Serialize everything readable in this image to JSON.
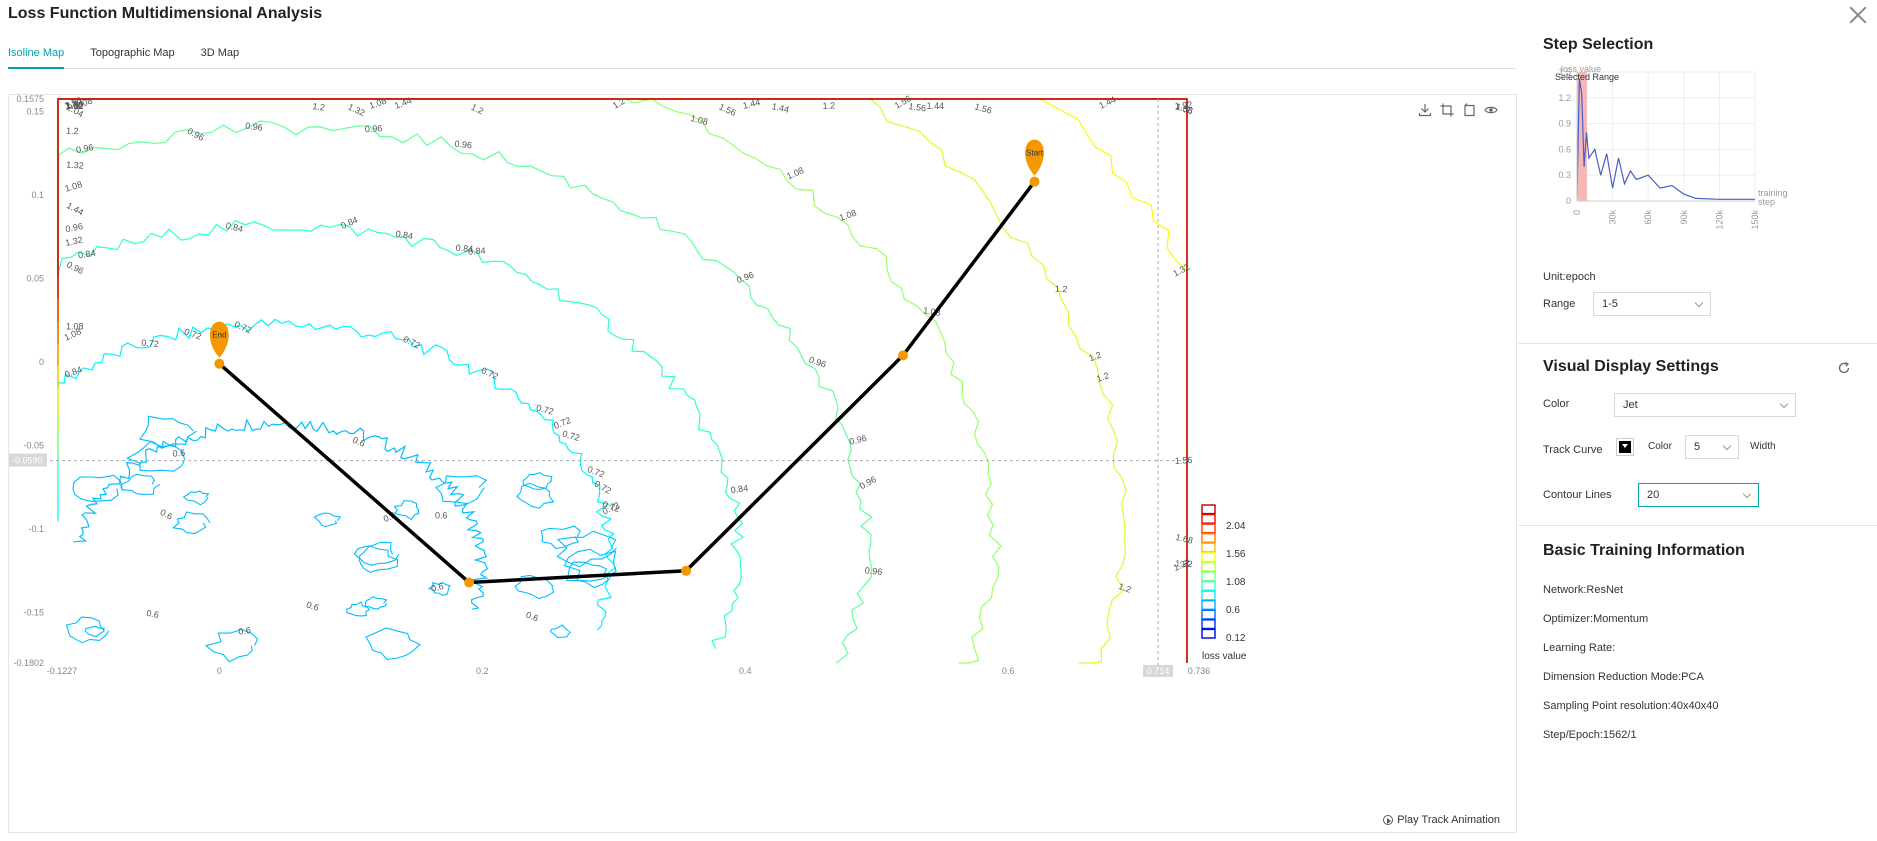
{
  "app": {
    "title": "Loss Function Multidimensional Analysis"
  },
  "tabs": [
    {
      "label": "Isoline Map",
      "active": true
    },
    {
      "label": "Topographic Map",
      "active": false
    },
    {
      "label": "3D Map",
      "active": false
    }
  ],
  "toolbar": {
    "icons": [
      "download-icon",
      "crop-icon",
      "reset-icon",
      "eye-icon"
    ]
  },
  "map": {
    "play_label": "Play Track Animation",
    "x_ticks": [
      "-0.1227",
      "0",
      "0.2",
      "0.4",
      "0.6",
      "0.714",
      "0.736"
    ],
    "y_ticks": [
      "0.1575",
      "0.15",
      "0.1",
      "0.05",
      "0",
      "-0.05",
      "-0.0590",
      "-0.1",
      "-0.15",
      "-0.1802"
    ],
    "legend": {
      "values": [
        "2.04",
        "1.56",
        "1.08",
        "0.6",
        "0.12"
      ],
      "title": "loss value"
    },
    "markers": {
      "start": "Start",
      "end": "End"
    },
    "contour_labels": [
      "1.2",
      "1.32",
      "1.2",
      "1.2",
      "1.08",
      "0.96",
      "1.08",
      "1.2",
      "1.56",
      "1.56",
      "1.44",
      "1.92",
      "2.04",
      "1.68",
      "1.56",
      "1.56",
      "1.44",
      "1.32",
      "1.56",
      "1.08",
      "1.2",
      "0.96",
      "0.96",
      "0.96",
      "0.96",
      "0.96",
      "0.84",
      "0.84",
      "0.84",
      "0.84",
      "0.96",
      "1.08",
      "1.2",
      "1.32",
      "1.44",
      "1.56",
      "1.68",
      "1.56",
      "1.44",
      "1.32",
      "1.2",
      "1.08",
      "1.32",
      "1.44",
      "1.56",
      "0.72",
      "0.72",
      "0.72",
      "0.72",
      "0.72",
      "0.72",
      "0.84",
      "0.96",
      "0.96",
      "1.08",
      "1.2",
      "1.32",
      "1.44",
      "0.6",
      "0.6",
      "0.6",
      "0.72",
      "0.72",
      "0.72",
      "0.84",
      "0.96",
      "1.08",
      "1.2",
      "0.6",
      "0.6",
      "0.6",
      "0.6",
      "0.72",
      "0.84",
      "0.96",
      "1.08",
      "1.2",
      "1.32",
      "1.44",
      "0.6",
      "0.6",
      "0.6",
      "0.72",
      "0.72",
      "0.84",
      "0.96",
      "1.08",
      "1.32"
    ]
  },
  "step_selection": {
    "title": "Step Selection",
    "chart_axis_label": "loss value",
    "selected_range_label": "Selected Range",
    "y_ticks": [
      "1.5",
      "1.2",
      "0.9",
      "0.6",
      "0.3",
      "0"
    ],
    "x_ticks": [
      "0",
      "30k",
      "60k",
      "90k",
      "120k",
      "150k"
    ],
    "x_axis_label_1": "training",
    "x_axis_label_2": "step",
    "unit_label": "Unit:epoch",
    "range_label": "Range",
    "range_value": "1-5"
  },
  "visual_settings": {
    "title": "Visual Display Settings",
    "color_label": "Color",
    "color_value": "Jet",
    "track_curve_label": "Track Curve",
    "track_color_label": "Color",
    "width_value": "5",
    "width_label": "Width",
    "contour_lines_label": "Contour Lines",
    "contour_lines_value": "20"
  },
  "training_info": {
    "title": "Basic Training Information",
    "items": [
      "Network:ResNet",
      "Optimizer:Momentum",
      "Learning Rate:",
      "Dimension Reduction Mode:PCA",
      "Sampling Point resolution:40x40x40",
      "Step/Epoch:1562/1"
    ]
  },
  "colors": {
    "accent": "#00a5a7",
    "marker": "#f39800",
    "track": "#000000"
  },
  "chart_data": [
    {
      "type": "contour",
      "x_range": [
        -0.1227,
        0.736
      ],
      "y_range": [
        -0.1802,
        0.1575
      ],
      "contour_levels": [
        0.12,
        0.6,
        0.72,
        0.84,
        0.96,
        1.08,
        1.2,
        1.32,
        1.44,
        1.56,
        1.68,
        1.8,
        1.92,
        2.04
      ],
      "track": [
        {
          "x": 0.62,
          "y": 0.108,
          "label": "Start"
        },
        {
          "x": 0.52,
          "y": 0.004
        },
        {
          "x": 0.355,
          "y": -0.125
        },
        {
          "x": 0.19,
          "y": -0.132
        },
        {
          "x": 0.0,
          "y": -0.001,
          "label": "End"
        }
      ],
      "crosshair": {
        "x": 0.714,
        "y": -0.059
      }
    },
    {
      "type": "line",
      "ylabel": "loss value",
      "xlabel": "training step",
      "xlim": [
        0,
        150000
      ],
      "ylim": [
        0,
        1.5
      ],
      "selected_range": [
        0,
        5000
      ],
      "x": [
        0,
        2000,
        4000,
        6000,
        8000,
        10000,
        15000,
        20000,
        25000,
        30000,
        35000,
        40000,
        45000,
        50000,
        60000,
        70000,
        80000,
        90000,
        100000,
        120000,
        150000
      ],
      "values": [
        0.05,
        1.42,
        1.25,
        0.4,
        0.8,
        0.5,
        0.6,
        0.3,
        0.55,
        0.15,
        0.5,
        0.2,
        0.35,
        0.25,
        0.3,
        0.15,
        0.18,
        0.08,
        0.03,
        0.02,
        0.02
      ]
    }
  ]
}
